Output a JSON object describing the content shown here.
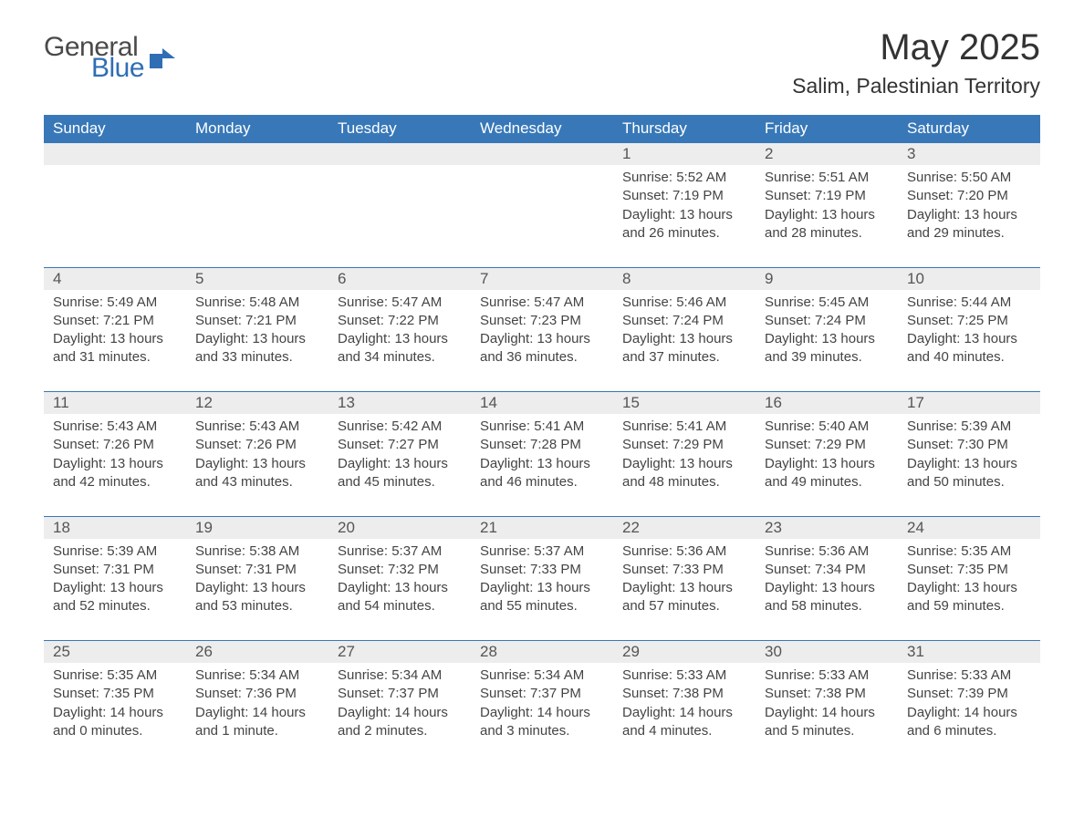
{
  "brand": {
    "general": "General",
    "blue": "Blue"
  },
  "title": "May 2025",
  "location": "Salim, Palestinian Territory",
  "colors": {
    "header_bg": "#3878b8",
    "header_text": "#ffffff",
    "daynum_bg": "#ededed",
    "rule": "#3878b8",
    "text": "#444444",
    "page_bg": "#ffffff",
    "logo_blue": "#2f6eb5",
    "logo_gray": "#4a4a4a"
  },
  "typography": {
    "title_fontsize": 40,
    "location_fontsize": 23,
    "header_fontsize": 17,
    "daynum_fontsize": 17,
    "body_fontsize": 15
  },
  "columns": [
    "Sunday",
    "Monday",
    "Tuesday",
    "Wednesday",
    "Thursday",
    "Friday",
    "Saturday"
  ],
  "first_weekday_index": 4,
  "days": [
    {
      "n": "1",
      "sunrise": "Sunrise: 5:52 AM",
      "sunset": "Sunset: 7:19 PM",
      "daylight": "Daylight: 13 hours and 26 minutes."
    },
    {
      "n": "2",
      "sunrise": "Sunrise: 5:51 AM",
      "sunset": "Sunset: 7:19 PM",
      "daylight": "Daylight: 13 hours and 28 minutes."
    },
    {
      "n": "3",
      "sunrise": "Sunrise: 5:50 AM",
      "sunset": "Sunset: 7:20 PM",
      "daylight": "Daylight: 13 hours and 29 minutes."
    },
    {
      "n": "4",
      "sunrise": "Sunrise: 5:49 AM",
      "sunset": "Sunset: 7:21 PM",
      "daylight": "Daylight: 13 hours and 31 minutes."
    },
    {
      "n": "5",
      "sunrise": "Sunrise: 5:48 AM",
      "sunset": "Sunset: 7:21 PM",
      "daylight": "Daylight: 13 hours and 33 minutes."
    },
    {
      "n": "6",
      "sunrise": "Sunrise: 5:47 AM",
      "sunset": "Sunset: 7:22 PM",
      "daylight": "Daylight: 13 hours and 34 minutes."
    },
    {
      "n": "7",
      "sunrise": "Sunrise: 5:47 AM",
      "sunset": "Sunset: 7:23 PM",
      "daylight": "Daylight: 13 hours and 36 minutes."
    },
    {
      "n": "8",
      "sunrise": "Sunrise: 5:46 AM",
      "sunset": "Sunset: 7:24 PM",
      "daylight": "Daylight: 13 hours and 37 minutes."
    },
    {
      "n": "9",
      "sunrise": "Sunrise: 5:45 AM",
      "sunset": "Sunset: 7:24 PM",
      "daylight": "Daylight: 13 hours and 39 minutes."
    },
    {
      "n": "10",
      "sunrise": "Sunrise: 5:44 AM",
      "sunset": "Sunset: 7:25 PM",
      "daylight": "Daylight: 13 hours and 40 minutes."
    },
    {
      "n": "11",
      "sunrise": "Sunrise: 5:43 AM",
      "sunset": "Sunset: 7:26 PM",
      "daylight": "Daylight: 13 hours and 42 minutes."
    },
    {
      "n": "12",
      "sunrise": "Sunrise: 5:43 AM",
      "sunset": "Sunset: 7:26 PM",
      "daylight": "Daylight: 13 hours and 43 minutes."
    },
    {
      "n": "13",
      "sunrise": "Sunrise: 5:42 AM",
      "sunset": "Sunset: 7:27 PM",
      "daylight": "Daylight: 13 hours and 45 minutes."
    },
    {
      "n": "14",
      "sunrise": "Sunrise: 5:41 AM",
      "sunset": "Sunset: 7:28 PM",
      "daylight": "Daylight: 13 hours and 46 minutes."
    },
    {
      "n": "15",
      "sunrise": "Sunrise: 5:41 AM",
      "sunset": "Sunset: 7:29 PM",
      "daylight": "Daylight: 13 hours and 48 minutes."
    },
    {
      "n": "16",
      "sunrise": "Sunrise: 5:40 AM",
      "sunset": "Sunset: 7:29 PM",
      "daylight": "Daylight: 13 hours and 49 minutes."
    },
    {
      "n": "17",
      "sunrise": "Sunrise: 5:39 AM",
      "sunset": "Sunset: 7:30 PM",
      "daylight": "Daylight: 13 hours and 50 minutes."
    },
    {
      "n": "18",
      "sunrise": "Sunrise: 5:39 AM",
      "sunset": "Sunset: 7:31 PM",
      "daylight": "Daylight: 13 hours and 52 minutes."
    },
    {
      "n": "19",
      "sunrise": "Sunrise: 5:38 AM",
      "sunset": "Sunset: 7:31 PM",
      "daylight": "Daylight: 13 hours and 53 minutes."
    },
    {
      "n": "20",
      "sunrise": "Sunrise: 5:37 AM",
      "sunset": "Sunset: 7:32 PM",
      "daylight": "Daylight: 13 hours and 54 minutes."
    },
    {
      "n": "21",
      "sunrise": "Sunrise: 5:37 AM",
      "sunset": "Sunset: 7:33 PM",
      "daylight": "Daylight: 13 hours and 55 minutes."
    },
    {
      "n": "22",
      "sunrise": "Sunrise: 5:36 AM",
      "sunset": "Sunset: 7:33 PM",
      "daylight": "Daylight: 13 hours and 57 minutes."
    },
    {
      "n": "23",
      "sunrise": "Sunrise: 5:36 AM",
      "sunset": "Sunset: 7:34 PM",
      "daylight": "Daylight: 13 hours and 58 minutes."
    },
    {
      "n": "24",
      "sunrise": "Sunrise: 5:35 AM",
      "sunset": "Sunset: 7:35 PM",
      "daylight": "Daylight: 13 hours and 59 minutes."
    },
    {
      "n": "25",
      "sunrise": "Sunrise: 5:35 AM",
      "sunset": "Sunset: 7:35 PM",
      "daylight": "Daylight: 14 hours and 0 minutes."
    },
    {
      "n": "26",
      "sunrise": "Sunrise: 5:34 AM",
      "sunset": "Sunset: 7:36 PM",
      "daylight": "Daylight: 14 hours and 1 minute."
    },
    {
      "n": "27",
      "sunrise": "Sunrise: 5:34 AM",
      "sunset": "Sunset: 7:37 PM",
      "daylight": "Daylight: 14 hours and 2 minutes."
    },
    {
      "n": "28",
      "sunrise": "Sunrise: 5:34 AM",
      "sunset": "Sunset: 7:37 PM",
      "daylight": "Daylight: 14 hours and 3 minutes."
    },
    {
      "n": "29",
      "sunrise": "Sunrise: 5:33 AM",
      "sunset": "Sunset: 7:38 PM",
      "daylight": "Daylight: 14 hours and 4 minutes."
    },
    {
      "n": "30",
      "sunrise": "Sunrise: 5:33 AM",
      "sunset": "Sunset: 7:38 PM",
      "daylight": "Daylight: 14 hours and 5 minutes."
    },
    {
      "n": "31",
      "sunrise": "Sunrise: 5:33 AM",
      "sunset": "Sunset: 7:39 PM",
      "daylight": "Daylight: 14 hours and 6 minutes."
    }
  ]
}
